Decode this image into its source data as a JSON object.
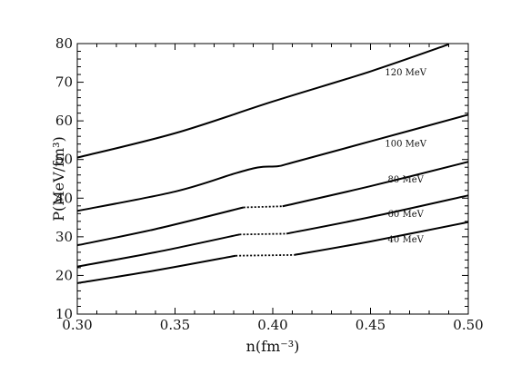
{
  "chart_data": {
    "type": "line",
    "title": "",
    "xlabel": "n(fm⁻³)",
    "ylabel": "P(MeV/fm³)",
    "xlim": [
      0.3,
      0.5
    ],
    "ylim": [
      10,
      80
    ],
    "x_ticks": [
      0.3,
      0.35,
      0.4,
      0.45,
      0.5
    ],
    "x_tick_labels": [
      "0.30",
      "0.35",
      "0.40",
      "0.45",
      "0.50"
    ],
    "y_ticks": [
      10,
      20,
      30,
      40,
      50,
      60,
      70,
      80
    ],
    "y_tick_labels": [
      "10",
      "20",
      "30",
      "40",
      "50",
      "60",
      "70",
      "80"
    ],
    "grid": false,
    "legend": "none",
    "line_color": "#000000",
    "series": [
      {
        "name": "120 MeV",
        "label_pos": [
          0.468,
          72.5
        ],
        "segments": [
          {
            "style": "solid",
            "points": [
              [
                0.3,
                50.5
              ],
              [
                0.35,
                56.8
              ],
              [
                0.4,
                65.0
              ],
              [
                0.45,
                72.8
              ],
              [
                0.49,
                79.8
              ]
            ]
          }
        ]
      },
      {
        "name": "100 MeV",
        "label_pos": [
          0.468,
          54.0
        ],
        "segments": [
          {
            "style": "solid",
            "points": [
              [
                0.3,
                36.7
              ],
              [
                0.35,
                41.7
              ],
              [
                0.38,
                46.3
              ],
              [
                0.39,
                47.7
              ],
              [
                0.395,
                48.1
              ],
              [
                0.403,
                48.3
              ],
              [
                0.41,
                49.2
              ],
              [
                0.45,
                54.7
              ],
              [
                0.5,
                61.6
              ]
            ]
          }
        ]
      },
      {
        "name": "80 MeV",
        "label_pos": [
          0.468,
          44.8
        ],
        "segments": [
          {
            "style": "solid",
            "points": [
              [
                0.3,
                27.8
              ],
              [
                0.34,
                32.0
              ],
              [
                0.385,
                37.6
              ]
            ]
          },
          {
            "style": "dotted",
            "points": [
              [
                0.385,
                37.6
              ],
              [
                0.405,
                37.9
              ]
            ]
          },
          {
            "style": "solid",
            "points": [
              [
                0.405,
                37.9
              ],
              [
                0.45,
                43.1
              ],
              [
                0.5,
                49.4
              ]
            ]
          }
        ]
      },
      {
        "name": "60 MeV",
        "label_pos": [
          0.468,
          35.8
        ],
        "segments": [
          {
            "style": "solid",
            "points": [
              [
                0.3,
                22.3
              ],
              [
                0.34,
                26.0
              ],
              [
                0.383,
                30.6
              ]
            ]
          },
          {
            "style": "dotted",
            "points": [
              [
                0.383,
                30.6
              ],
              [
                0.407,
                30.8
              ]
            ]
          },
          {
            "style": "solid",
            "points": [
              [
                0.407,
                30.8
              ],
              [
                0.45,
                35.1
              ],
              [
                0.5,
                40.7
              ]
            ]
          }
        ]
      },
      {
        "name": "40 MeV",
        "label_pos": [
          0.468,
          29.3
        ],
        "segments": [
          {
            "style": "solid",
            "points": [
              [
                0.3,
                18.0
              ],
              [
                0.34,
                21.3
              ],
              [
                0.381,
                25.1
              ]
            ]
          },
          {
            "style": "dotted",
            "points": [
              [
                0.381,
                25.1
              ],
              [
                0.411,
                25.3
              ]
            ]
          },
          {
            "style": "solid",
            "points": [
              [
                0.411,
                25.3
              ],
              [
                0.45,
                28.8
              ],
              [
                0.5,
                33.8
              ]
            ]
          }
        ]
      }
    ]
  }
}
